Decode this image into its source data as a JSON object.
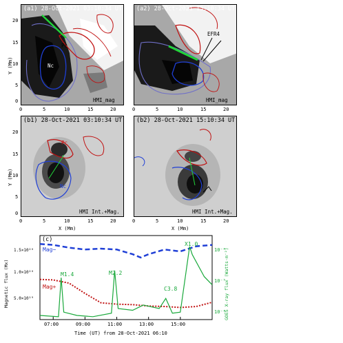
{
  "panels": {
    "a1": {
      "label": "(a1) 28-Oct-2021 03:10:34 UT",
      "instrument": "HMI_mag",
      "pc": "Pc",
      "nc": "Nc"
    },
    "a2": {
      "label": "(a2) 28-Oct-2021 15:10:34 UT",
      "instrument": "HMI_mag",
      "annotation": "EFR4"
    },
    "b1": {
      "label": "(b1) 28-Oct-2021 03:10:34 UT",
      "instrument": "HMI Int.+Mag.",
      "pc": "Pc",
      "nc": "Nc"
    },
    "b2": {
      "label": "(b2) 28-Oct-2021 15:10:34 UT",
      "instrument": "HMI Int.+Mag."
    }
  },
  "axes": {
    "x_label": "X (Mm)",
    "y_label": "Y (Mm)",
    "x_ticks": [
      "0",
      "5",
      "10",
      "15",
      "20"
    ],
    "y_ticks": [
      "0",
      "5",
      "10",
      "15",
      "20"
    ]
  },
  "timeseries": {
    "label": "(c)",
    "xlabel": "Time (UT) from 28-Oct-2021 06:10",
    "ylabel_left": "Magnetic flux (Mx)",
    "ylabel_right": "GOES X-ray flux (Watts·m⁻²)",
    "x_ticks": [
      "07:00",
      "09:00",
      "11:00",
      "13:00",
      "15:00"
    ],
    "left_ticks": [
      "1.5×10²⁰",
      "1.0×10²⁰",
      "5.0×10¹⁹"
    ],
    "right_ticks": [
      "10⁻⁴",
      "10⁻⁵",
      "10⁻⁶"
    ],
    "legend_mag_minus": "Mag−",
    "legend_mag_plus": "Mag+",
    "flares": [
      "M1.4",
      "M2.2",
      "C3.8",
      "X1.0"
    ],
    "colors": {
      "mag_minus": "#1f3fd6",
      "mag_plus": "#c01010",
      "goes": "#18a83a"
    }
  },
  "chart_data": {
    "type": "line",
    "title": "(c)",
    "xlabel": "Time (UT) from 28-Oct-2021 06:10",
    "ylabel": "Magnetic flux (Mx)",
    "ylabel_right": "GOES X-ray flux (Watts·m⁻²)",
    "xlim": [
      "06:10",
      "17:00"
    ],
    "ylim": [
      0,
      1.8e+20
    ],
    "ylim_right": [
      1e-06,
      0.0002
    ],
    "y_right_scale": "log",
    "series": [
      {
        "name": "Mag−",
        "axis": "left",
        "color": "#1f3fd6",
        "x": [
          "06:10",
          "07:00",
          "08:00",
          "09:00",
          "10:00",
          "11:00",
          "12:00",
          "12:30",
          "13:00",
          "14:00",
          "15:00",
          "16:00",
          "17:00"
        ],
        "y": [
          1.62e+20,
          1.6e+20,
          1.54e+20,
          1.5e+20,
          1.52e+20,
          1.5e+20,
          1.4e+20,
          1.33e+20,
          1.4e+20,
          1.5e+20,
          1.46e+20,
          1.57e+20,
          1.6e+20
        ]
      },
      {
        "name": "Mag+",
        "axis": "left",
        "color": "#c01010",
        "x": [
          "06:10",
          "07:00",
          "08:00",
          "09:00",
          "10:00",
          "11:00",
          "12:00",
          "13:00",
          "14:00",
          "15:00",
          "16:00",
          "17:00"
        ],
        "y": [
          8.6e+19,
          8.5e+19,
          7.8e+19,
          5.6e+19,
          3.6e+19,
          3.3e+19,
          3.2e+19,
          2.9e+19,
          2.8e+19,
          2.6e+19,
          2.8e+19,
          3.7e+19
        ]
      },
      {
        "name": "GOES",
        "axis": "right",
        "color": "#18a83a",
        "x": [
          "06:10",
          "07:20",
          "07:30",
          "07:40",
          "08:30",
          "09:30",
          "10:40",
          "10:52",
          "11:05",
          "12:00",
          "12:40",
          "13:40",
          "14:05",
          "14:30",
          "15:00",
          "15:35",
          "15:45",
          "16:30",
          "17:00"
        ],
        "y": [
          1.3e-06,
          1.2e-06,
          1.4e-05,
          1.6e-06,
          1.3e-06,
          1.2e-06,
          1.5e-06,
          2.2e-05,
          2e-06,
          1.8e-06,
          2.5e-06,
          2e-06,
          3.8e-06,
          1.5e-06,
          1.6e-06,
          0.0001,
          6e-05,
          1.5e-05,
          9e-06
        ]
      }
    ],
    "annotations": [
      "M1.4",
      "M2.2",
      "C3.8",
      "X1.0"
    ]
  }
}
